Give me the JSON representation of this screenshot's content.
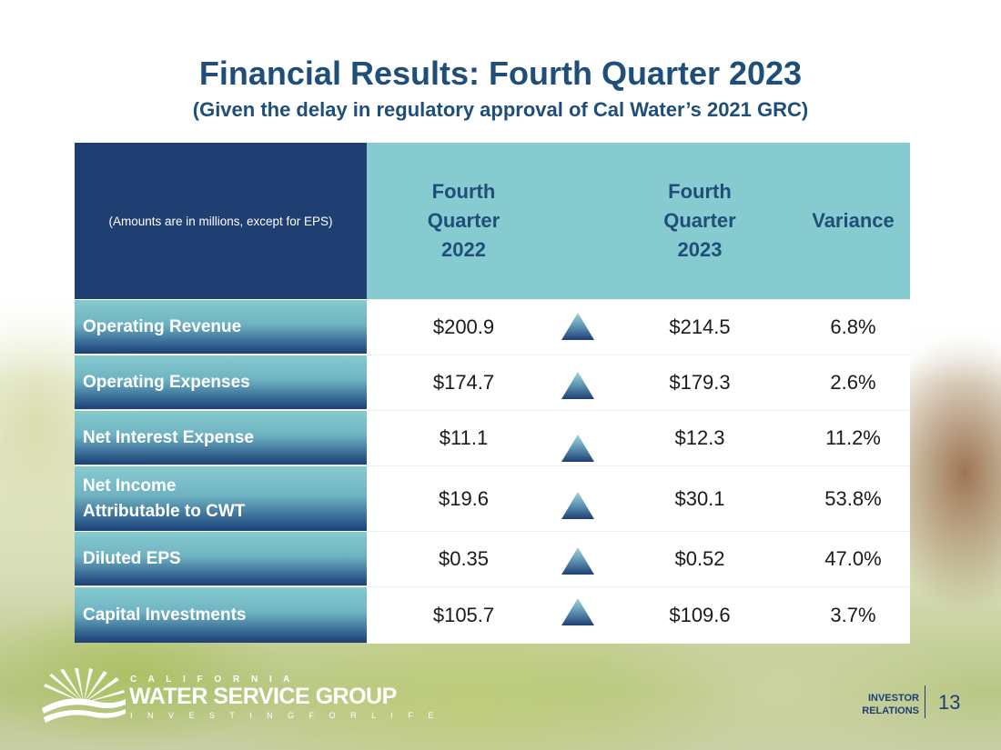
{
  "slide": {
    "title": "Financial Results: Fourth Quarter 2023",
    "subtitle": "(Given the delay in regulatory approval of Cal Water’s 2021 GRC)",
    "page_number": "13"
  },
  "table": {
    "note": "(Amounts are in millions, except for EPS)",
    "columns": {
      "q4_2022": [
        "Fourth",
        "Quarter",
        "2022"
      ],
      "q4_2023": [
        "Fourth",
        "Quarter",
        "2023"
      ],
      "variance": "Variance"
    },
    "rows": [
      {
        "label": "Operating Revenue",
        "q4_2022": "$200.9",
        "q4_2023": "$214.5",
        "variance": "6.8%",
        "trend": "up"
      },
      {
        "label": "Operating Expenses",
        "q4_2022": "$174.7",
        "q4_2023": "$179.3",
        "variance": "2.6%",
        "trend": "up"
      },
      {
        "label": "Net Interest Expense",
        "q4_2022": "$11.1",
        "q4_2023": "$12.3",
        "variance": "11.2%",
        "trend": "up"
      },
      {
        "label_lines": [
          "Net Income",
          "Attributable to CWT"
        ],
        "q4_2022": "$19.6",
        "q4_2023": "$30.1",
        "variance": "53.8%",
        "trend": "up"
      },
      {
        "label": "Diluted EPS",
        "q4_2022": "$0.35",
        "q4_2023": "$0.52",
        "variance": "47.0%",
        "trend": "up"
      },
      {
        "label": "Capital Investments",
        "q4_2022": "$105.7",
        "q4_2023": "$109.6",
        "variance": "3.7%",
        "trend": "up"
      }
    ]
  },
  "logo": {
    "line1": "C A L I F O R N I A",
    "line2": "WATER SERVICE GROUP",
    "line3": "I N V E S T I N G   F O R   L I F E"
  },
  "investor_relations": [
    "INVESTOR",
    "RELATIONS"
  ],
  "colors": {
    "navy": "#1f3f73",
    "teal": "#85cbcf",
    "title_blue": "#1f4e79"
  },
  "icons": {
    "trend": "triangle-up-icon",
    "logo": "sunrise-wave-logo-icon"
  }
}
